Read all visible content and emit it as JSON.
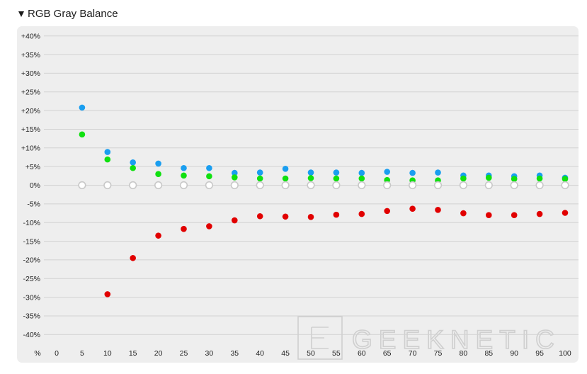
{
  "header": {
    "title": "RGB Gray Balance"
  },
  "colors": {
    "background": "#eeeeee",
    "grid": "#d2d2d2",
    "red": "#e10000",
    "green": "#10e010",
    "blue": "#1a9ef0",
    "gray": "#c8c8c8"
  },
  "watermark": {
    "text": "GEEKNETIC"
  },
  "chart_data": {
    "type": "scatter",
    "x_unit_label": "%",
    "y_ticks": [
      "+40%",
      "+35%",
      "+30%",
      "+25%",
      "+20%",
      "+15%",
      "+10%",
      "+5%",
      "0%",
      "-5%",
      "-10%",
      "-15%",
      "-20%",
      "-25%",
      "-30%",
      "-35%",
      "-40%"
    ],
    "x": [
      0,
      5,
      10,
      15,
      20,
      25,
      30,
      35,
      40,
      45,
      50,
      55,
      60,
      65,
      70,
      75,
      80,
      85,
      90,
      95,
      100
    ],
    "ylim": [
      -42,
      42
    ],
    "grid": true,
    "series": [
      {
        "color": "blue",
        "x": [
          5,
          10,
          15,
          20,
          25,
          30,
          35,
          40,
          45,
          50,
          55,
          60,
          65,
          70,
          75,
          80,
          85,
          90,
          95,
          100
        ],
        "values": [
          20.8,
          8.9,
          6.1,
          5.8,
          4.6,
          4.6,
          3.3,
          3.4,
          4.4,
          3.4,
          3.4,
          3.3,
          3.6,
          3.3,
          3.4,
          2.6,
          2.6,
          2.4,
          2.6,
          2.0
        ]
      },
      {
        "color": "green",
        "x": [
          5,
          10,
          15,
          20,
          25,
          30,
          35,
          40,
          45,
          50,
          55,
          60,
          65,
          70,
          75,
          80,
          85,
          90,
          95,
          100
        ],
        "values": [
          13.6,
          6.9,
          4.6,
          3.0,
          2.6,
          2.4,
          2.1,
          1.8,
          1.8,
          1.9,
          1.8,
          1.8,
          1.4,
          1.3,
          1.3,
          1.8,
          2.0,
          1.7,
          1.8,
          1.7
        ]
      },
      {
        "color": "red",
        "x": [
          10,
          15,
          20,
          25,
          30,
          35,
          40,
          45,
          50,
          55,
          60,
          65,
          70,
          75,
          80,
          85,
          90,
          95,
          100
        ],
        "values": [
          -29.2,
          -19.5,
          -13.5,
          -11.7,
          -11.0,
          -9.4,
          -8.3,
          -8.4,
          -8.5,
          -7.9,
          -7.7,
          -6.9,
          -6.3,
          -6.6,
          -7.5,
          -8.0,
          -8.0,
          -7.7,
          -7.4
        ]
      },
      {
        "color": "gray",
        "x": [
          5,
          10,
          15,
          20,
          25,
          30,
          35,
          40,
          45,
          50,
          55,
          60,
          65,
          70,
          75,
          80,
          85,
          90,
          95,
          100
        ],
        "values": [
          0,
          0,
          0,
          0,
          0,
          0,
          0,
          0,
          0,
          0,
          0,
          0,
          0,
          0,
          0,
          0,
          0,
          0,
          0,
          0
        ]
      }
    ]
  }
}
